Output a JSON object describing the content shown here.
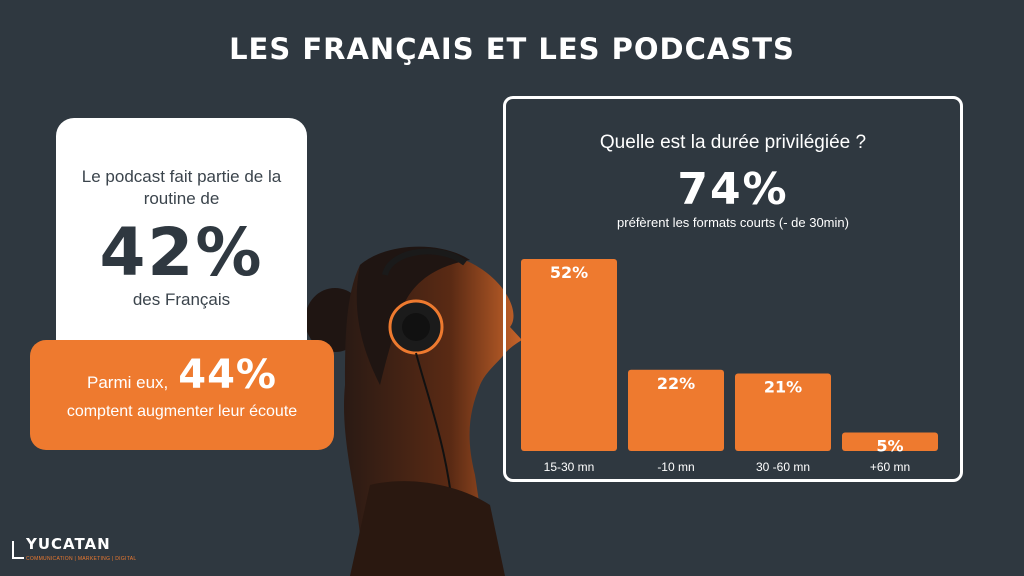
{
  "title": "LES FRANÇAIS ET LES PODCASTS",
  "left_card": {
    "intro": "Le podcast fait partie de la routine de",
    "value": "42%",
    "outro": "des Français"
  },
  "orange_card": {
    "prefix": "Parmi eux,",
    "value": "44%",
    "text": "comptent augmenter leur écoute"
  },
  "chart_panel": {
    "question": "Quelle est la durée privilégiée ?",
    "headline": "74%",
    "subtitle": "préfèrent les formats courts (- de 30min)"
  },
  "chart_data": {
    "type": "bar",
    "categories": [
      "15-30 mn",
      "-10 mn",
      "30 -60 mn",
      "+60 mn"
    ],
    "values": [
      52,
      22,
      21,
      5
    ],
    "value_labels": [
      "52%",
      "22%",
      "21%",
      "5%"
    ],
    "title": "Quelle est la durée privilégiée ?",
    "xlabel": "",
    "ylabel": "",
    "ylim": [
      0,
      52
    ],
    "grid": false,
    "legend": "none",
    "bar_color": "#ee7a2f"
  },
  "logo": {
    "name": "YUCATAN",
    "tagline": "COMMUNICATION | MARKETING | DIGITAL"
  },
  "colors": {
    "background": "#2f3840",
    "accent": "#ee7a2f",
    "white": "#ffffff"
  }
}
